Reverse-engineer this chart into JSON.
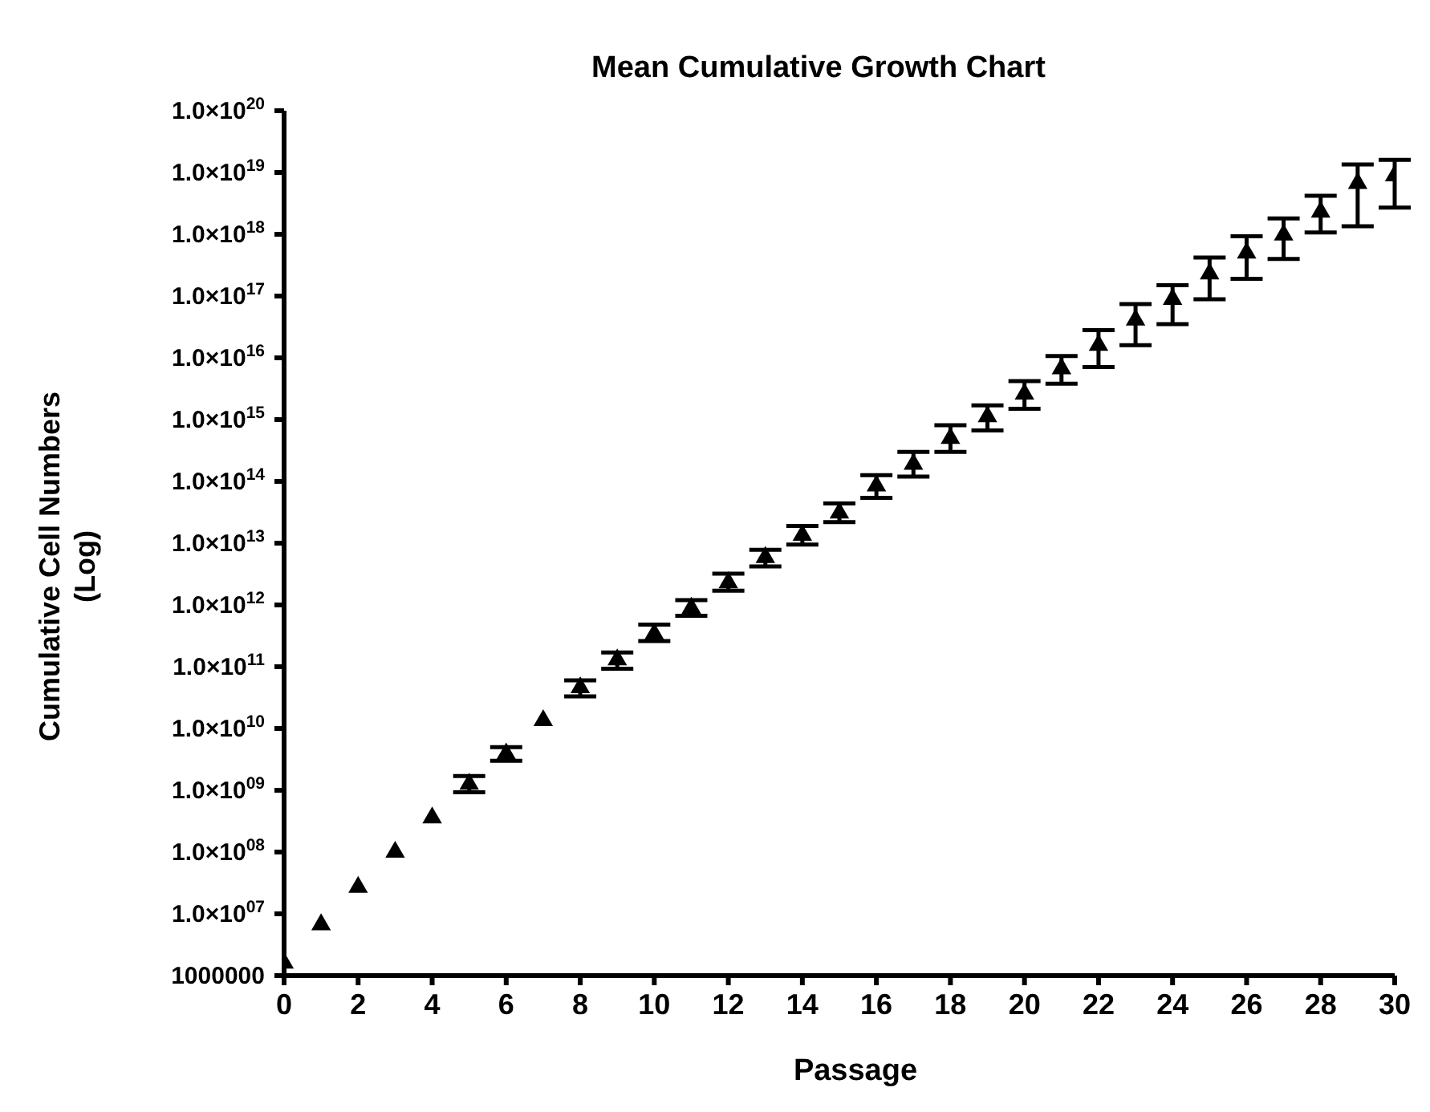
{
  "chart_data": {
    "type": "scatter",
    "title": "Mean Cumulative Growth Chart",
    "xlabel": "Passage",
    "ylabel": "Cumulative Cell Numbers\n(Log)",
    "x": [
      0,
      1,
      2,
      3,
      4,
      5,
      6,
      7,
      8,
      9,
      10,
      11,
      12,
      13,
      14,
      15,
      16,
      17,
      18,
      19,
      20,
      21,
      22,
      23,
      24,
      25,
      26,
      27,
      28,
      29,
      30
    ],
    "series": [
      {
        "color": "#000000",
        "values": [
          1600000.0,
          6700000.0,
          27000000.0,
          100000000.0,
          360000000.0,
          1260000000.0,
          3900000000.0,
          13500000000.0,
          46000000000.0,
          130000000000.0,
          340000000000.0,
          890000000000.0,
          2300000000000.0,
          5900000000000.0,
          13500000000000.0,
          31000000000000.0,
          85000000000000.0,
          190000000000000.0,
          500000000000000.0,
          1120000000000000.0,
          2600000000000000.0,
          6700000000000000.0,
          1.6e+16,
          4.1e+16,
          8.9e+16,
          2.3e+17,
          5e+17,
          9.8e+17,
          2.3e+18,
          6.7e+18,
          8.9e+18
        ],
        "errors": [
          null,
          null,
          null,
          null,
          null,
          [
            930000000.0,
            1700000000.0
          ],
          [
            3000000000.0,
            5000000000.0
          ],
          null,
          [
            33000000000.0,
            60000000000.0
          ],
          [
            93000000000.0,
            170000000000.0
          ],
          [
            260000000000.0,
            480000000000.0
          ],
          [
            670000000000.0,
            1200000000000.0
          ],
          [
            1700000000000.0,
            3200000000000.0
          ],
          [
            4200000000000.0,
            7800000000000.0
          ],
          [
            9500000000000.0,
            19000000000000.0
          ],
          [
            22000000000000.0,
            44000000000000.0
          ],
          [
            54000000000000.0,
            126000000000000.0
          ],
          [
            120000000000000.0,
            300000000000000.0
          ],
          [
            300000000000000.0,
            810000000000000.0
          ],
          [
            670000000000000.0,
            1700000000000000.0
          ],
          [
            1500000000000000.0,
            4200000000000000.0
          ],
          [
            3800000000000000.0,
            1.07e+16
          ],
          [
            7100000000000000.0,
            2.8e+16
          ],
          [
            1.6e+16,
            7.4e+16
          ],
          [
            3.5e+16,
            1.5e+17
          ],
          [
            8.9e+16,
            4.2e+17
          ],
          [
            1.9e+17,
            9.3e+17
          ],
          [
            4e+17,
            1.8e+18
          ],
          [
            1.07e+18,
            4.2e+18
          ],
          [
            1.35e+18,
            1.35e+19
          ],
          [
            2.7e+18,
            1.6e+19
          ]
        ]
      }
    ],
    "log": "y",
    "marker": "triangle",
    "grid": false,
    "legend": false,
    "xlim": [
      0,
      30
    ],
    "xticks": [
      0,
      2,
      4,
      6,
      8,
      10,
      12,
      14,
      16,
      18,
      20,
      22,
      24,
      26,
      28,
      30
    ],
    "ylim": [
      1000000.0,
      1e+20
    ],
    "yticks": [
      {
        "value": 1000000.0,
        "label": "1000000"
      },
      {
        "value": 10000000.0,
        "label": "1.0×10$^{07}$"
      },
      {
        "value": 100000000.0,
        "label": "1.0×10$^{08}$"
      },
      {
        "value": 1000000000.0,
        "label": "1.0×10$^{09}$"
      },
      {
        "value": 10000000000.0,
        "label": "1.0×10$^{10}$"
      },
      {
        "value": 100000000000.0,
        "label": "1.0×10$^{11}$"
      },
      {
        "value": 1000000000000.0,
        "label": "1.0×10$^{12}$"
      },
      {
        "value": 10000000000000.0,
        "label": "1.0×10$^{13}$"
      },
      {
        "value": 100000000000000.0,
        "label": "1.0×10$^{14}$"
      },
      {
        "value": 1000000000000000.0,
        "label": "1.0×10$^{15}$"
      },
      {
        "value": 1e+16,
        "label": "1.0×10$^{16}$"
      },
      {
        "value": 1e+17,
        "label": "1.0×10$^{17}$"
      },
      {
        "value": 1e+18,
        "label": "1.0×10$^{18}$"
      },
      {
        "value": 1e+19,
        "label": "1.0×10$^{19}$"
      },
      {
        "value": 1e+20,
        "label": "1.0×10$^{20}$"
      }
    ]
  }
}
